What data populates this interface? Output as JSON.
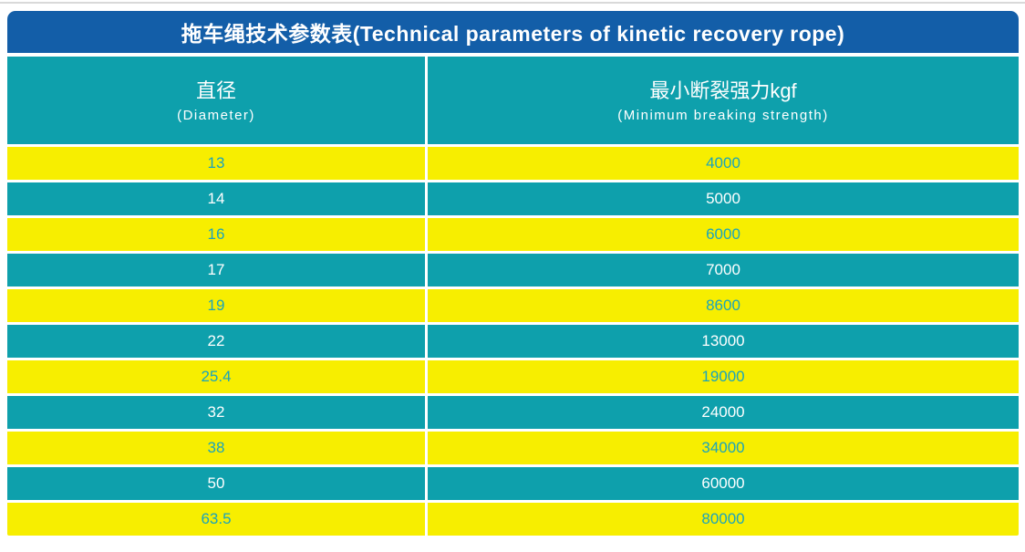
{
  "title": "拖车绳技术参数表(Technical parameters of kinetic recovery rope)",
  "columns": [
    {
      "zh": "直径",
      "en": "(Diameter)"
    },
    {
      "zh": "最小断裂强力kgf",
      "en": "(Minimum breaking strength)"
    }
  ],
  "rows": [
    {
      "diameter": "13",
      "strength": "4000"
    },
    {
      "diameter": "14",
      "strength": "5000"
    },
    {
      "diameter": "16",
      "strength": "6000"
    },
    {
      "diameter": "17",
      "strength": "7000"
    },
    {
      "diameter": "19",
      "strength": "8600"
    },
    {
      "diameter": "22",
      "strength": "13000"
    },
    {
      "diameter": "25.4",
      "strength": "19000"
    },
    {
      "diameter": "32",
      "strength": "24000"
    },
    {
      "diameter": "38",
      "strength": "34000"
    },
    {
      "diameter": "50",
      "strength": "60000"
    },
    {
      "diameter": "63.5",
      "strength": "80000"
    }
  ],
  "colors": {
    "title_bar_blue": "#135ea8",
    "teal": "#0ea0ac",
    "yellow": "#f7ee00",
    "yellow_row_text_teal": "#1ba4bb",
    "header_text_white": "#ffffff"
  },
  "chart_data": {
    "type": "table",
    "title": "拖车绳技术参数表(Technical parameters of kinetic recovery rope)",
    "columns": [
      "直径 (Diameter)",
      "最小断裂强力kgf (Minimum breaking strength)"
    ],
    "rows": [
      [
        13,
        4000
      ],
      [
        14,
        5000
      ],
      [
        16,
        6000
      ],
      [
        17,
        7000
      ],
      [
        19,
        8600
      ],
      [
        22,
        13000
      ],
      [
        25.4,
        19000
      ],
      [
        32,
        24000
      ],
      [
        38,
        34000
      ],
      [
        50,
        60000
      ],
      [
        63.5,
        80000
      ]
    ]
  }
}
